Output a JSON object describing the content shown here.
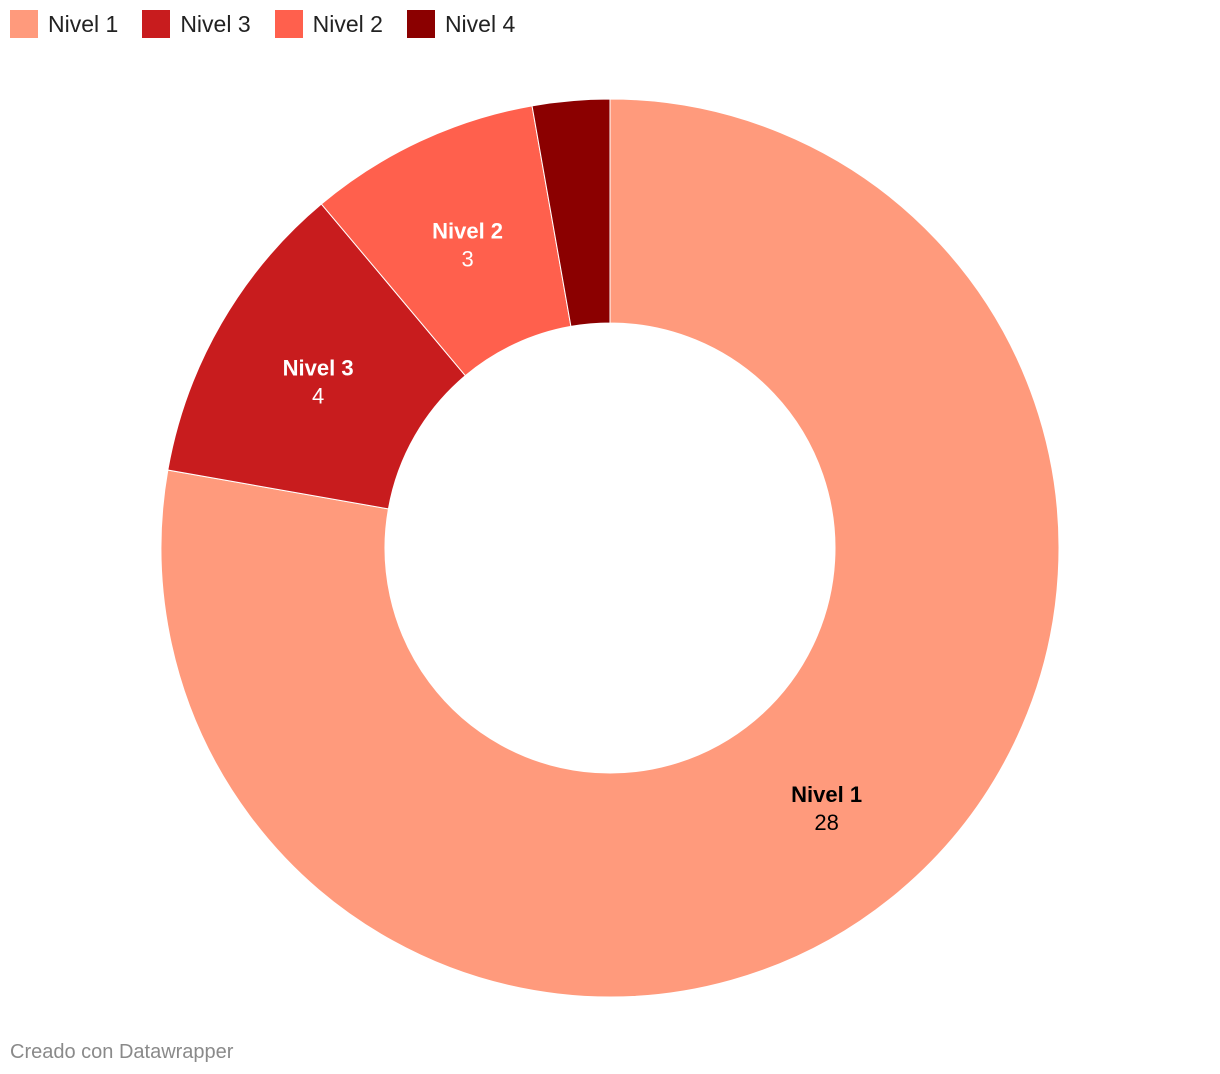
{
  "chart_data": {
    "type": "pie",
    "donut": true,
    "slices": [
      {
        "label": "Nivel 1",
        "value": 28,
        "color": "#FF9A7C",
        "label_color": "#000000"
      },
      {
        "label": "Nivel 3",
        "value": 4,
        "color": "#C81C1E",
        "label_color": "#ffffff"
      },
      {
        "label": "Nivel 2",
        "value": 3,
        "color": "#FF604D",
        "label_color": "#ffffff"
      },
      {
        "label": "Nivel 4",
        "value": 1,
        "color": "#8B0000",
        "label_color": "#ffffff"
      }
    ],
    "legend": {
      "placement": "top-left",
      "items": [
        {
          "label": "Nivel 1",
          "color": "#FF9A7C"
        },
        {
          "label": "Nivel 3",
          "color": "#C81C1E"
        },
        {
          "label": "Nivel 2",
          "color": "#FF604D"
        },
        {
          "label": "Nivel 4",
          "color": "#8B0000"
        }
      ]
    },
    "label_order": [
      "Nivel 1",
      "Nivel 2",
      "Nivel 3"
    ]
  },
  "footer": {
    "credit": "Creado con Datawrapper"
  }
}
